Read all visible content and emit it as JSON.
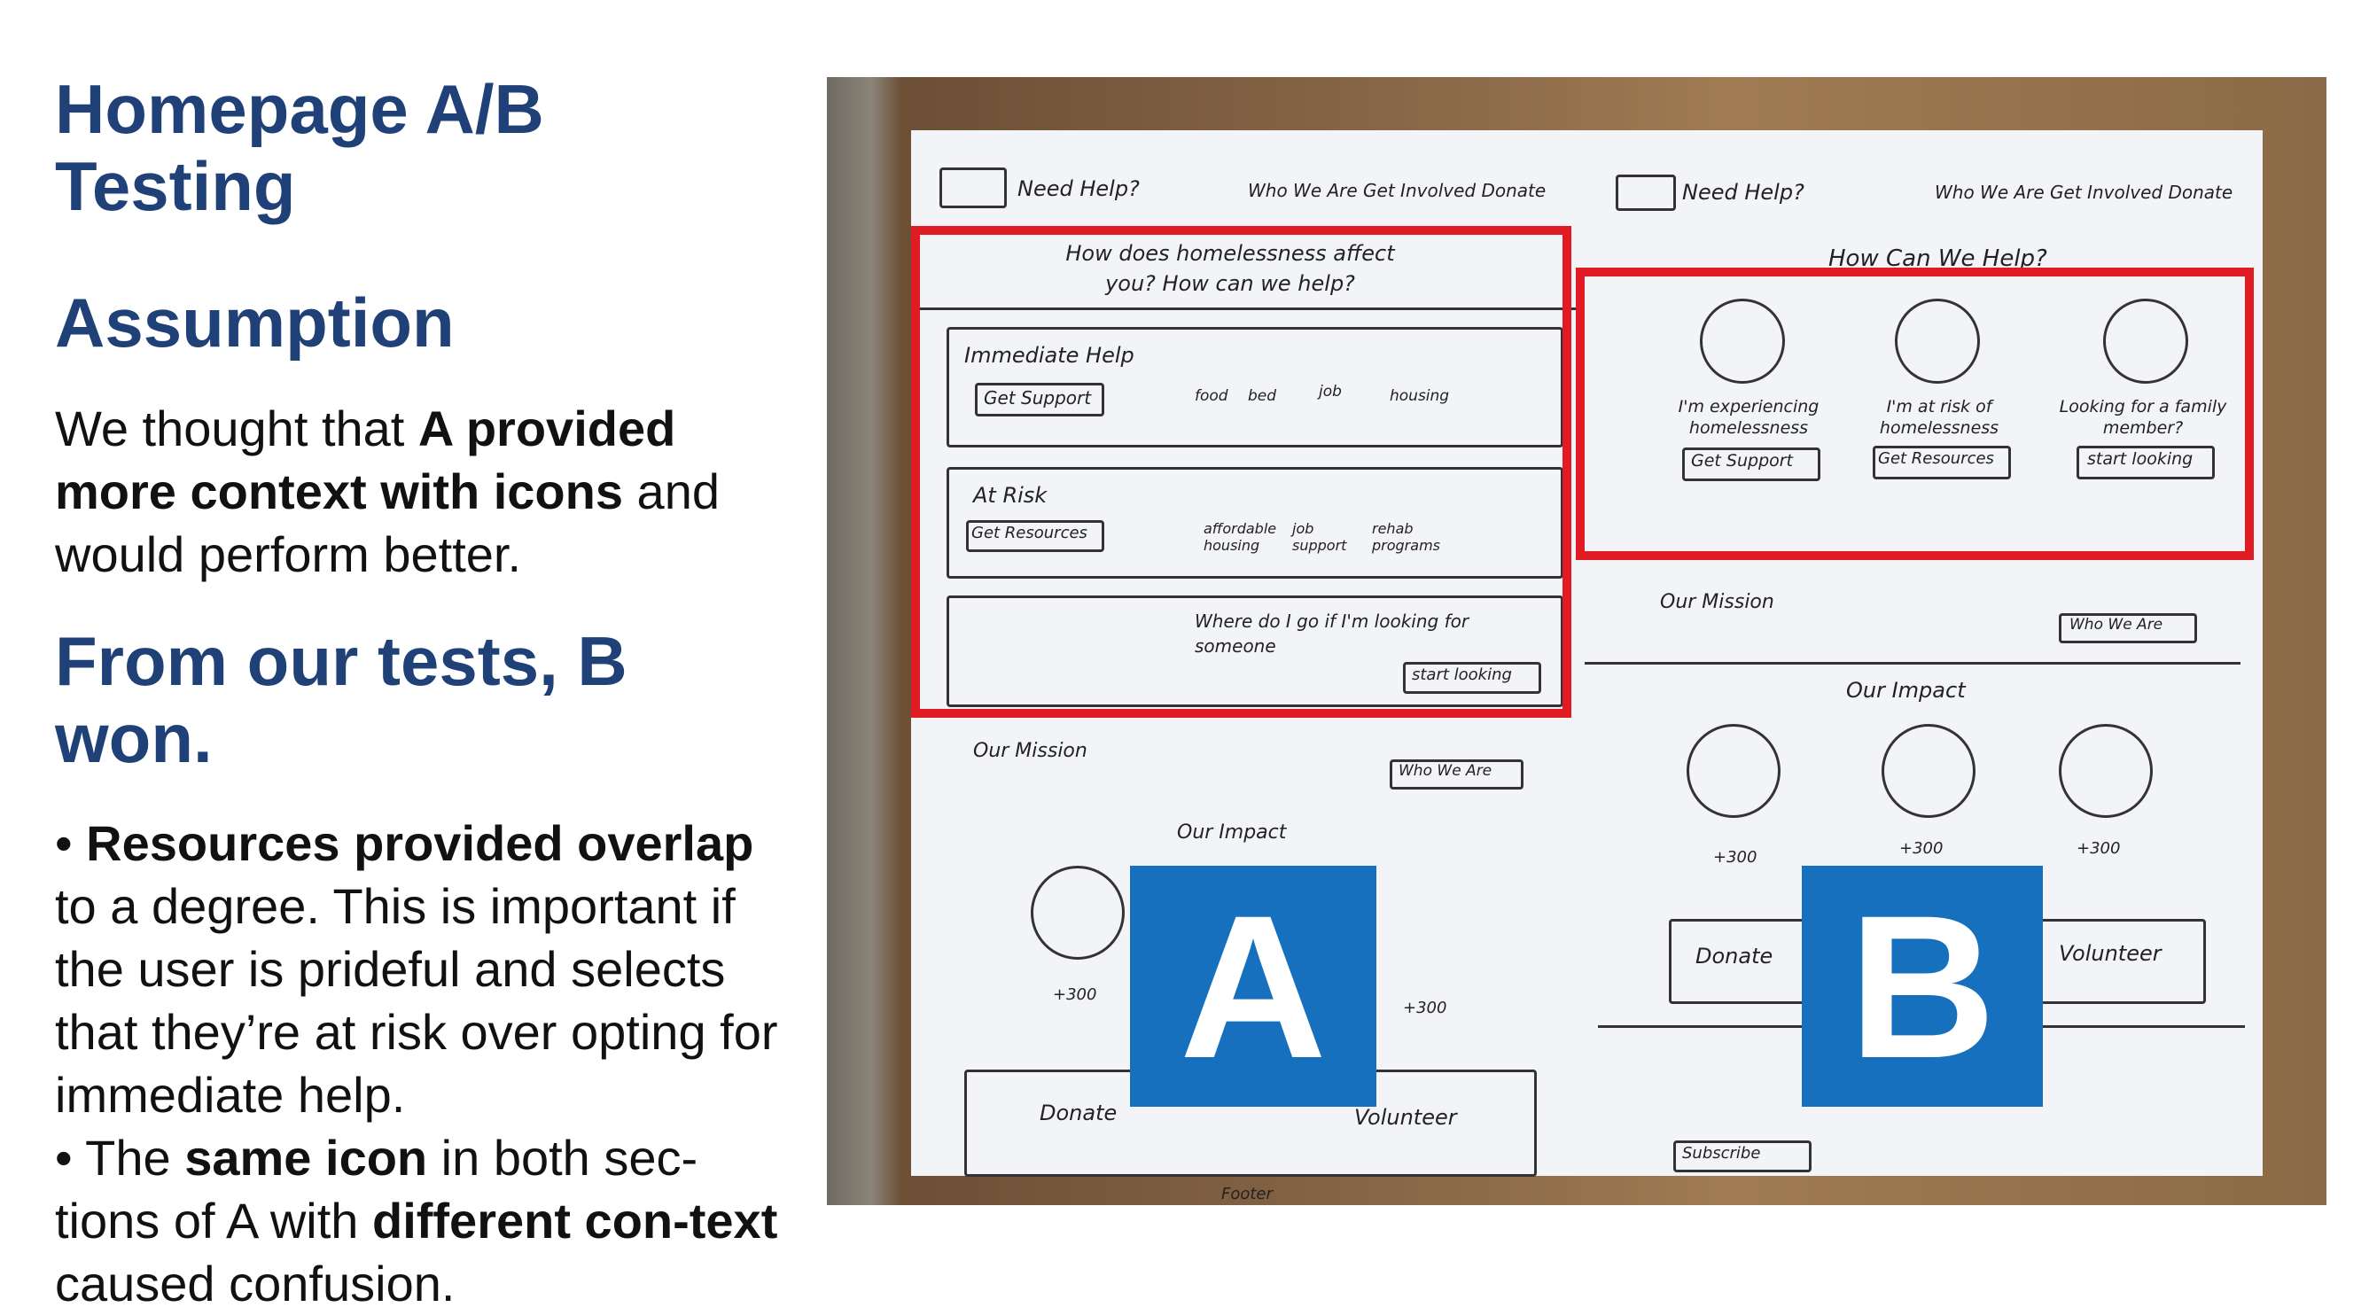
{
  "title": "Homepage A/B Testing",
  "assumption_heading": "Assumption",
  "assumption": {
    "t1": "We thought that ",
    "b1": "A provided more context with icons",
    "t2": " and would perform better."
  },
  "result_heading": "From our tests, B won.",
  "bullet1": {
    "dot": "• ",
    "b1": "Resources provided overlap",
    "t1": " to a degree. This is important if the user is prideful and selects that they’re at risk over opting for immediate help."
  },
  "bullet2": {
    "dot": "• ",
    "t1": "The ",
    "b1": "same icon",
    "t2": " in both sec-tions of A with ",
    "b2": "different con-text",
    "t3": " caused confusion."
  },
  "labels": {
    "a": "A",
    "b": "B"
  },
  "sketch_a": {
    "need_help": "Need Help?",
    "nav": "Who We Are  Get Involved  Donate",
    "question": "How does homelessness affect you? How can we help?",
    "immediate": "Immediate Help",
    "get_support": "Get Support",
    "icons1": [
      "food",
      "bed",
      "job",
      "housing"
    ],
    "at_risk": "At Risk",
    "get_resources": "Get Resources",
    "icons2": [
      "affordable housing",
      "job support",
      "rehab programs"
    ],
    "looking": "Where do I go if I'm looking for someone",
    "start_looking": "start looking",
    "mission": "Our Mission",
    "who_we_are": "Who We Are",
    "impact": "Our Impact",
    "stat": "+300",
    "donate": "Donate",
    "volunteer": "Volunteer",
    "footer": "Footer"
  },
  "sketch_b": {
    "need_help": "Need Help?",
    "nav": "Who We Are  Get Involved  Donate",
    "question": "How Can We Help?",
    "opt1": "I'm experiencing homelessness",
    "opt2": "I'm at risk of homelessness",
    "opt3": "Looking for a family member?",
    "btn1": "Get Support",
    "btn2": "Get Resources",
    "btn3": "start looking",
    "mission": "Our Mission",
    "who_we_are": "Who We Are",
    "impact": "Our Impact",
    "stat": "+300",
    "donate": "Donate",
    "volunteer": "Volunteer",
    "subscribe": "Subscribe"
  },
  "colors": {
    "heading": "#1f4178",
    "label_bg": "#1770bd",
    "highlight": "#e01b24"
  }
}
